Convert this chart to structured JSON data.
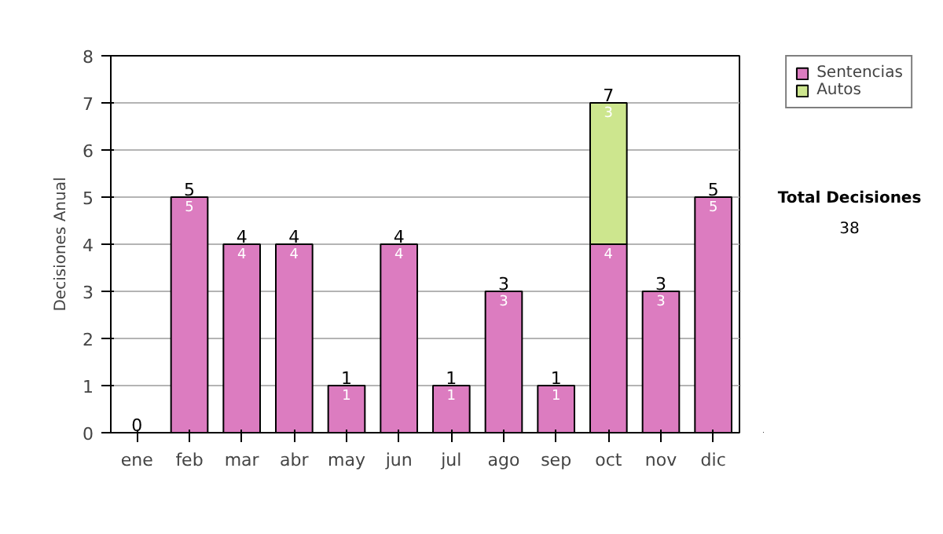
{
  "chart_data": {
    "type": "bar",
    "stacked": true,
    "ylabel": "Decisiones Anual",
    "categories": [
      "ene",
      "feb",
      "mar",
      "abr",
      "may",
      "jun",
      "jul",
      "ago",
      "sep",
      "oct",
      "nov",
      "dic"
    ],
    "series": [
      {
        "name": "Sentencias",
        "color": "#dc7cc0",
        "values": [
          0,
          5,
          4,
          4,
          1,
          4,
          1,
          3,
          1,
          4,
          3,
          5
        ],
        "value_labels": [
          null,
          "5",
          "4",
          "4",
          "1",
          "4",
          "1",
          "3",
          "1",
          "4",
          "3",
          "5"
        ]
      },
      {
        "name": "Autos",
        "color": "#cde68e",
        "values": [
          0,
          0,
          0,
          0,
          0,
          0,
          0,
          0,
          0,
          3,
          0,
          0
        ],
        "value_labels": [
          null,
          null,
          null,
          null,
          null,
          null,
          null,
          null,
          null,
          "3",
          null,
          null
        ]
      }
    ],
    "totals": [
      "0",
      "5",
      "4",
      "4",
      "1",
      "4",
      "1",
      "3",
      "1",
      "7",
      "3",
      "5"
    ],
    "ylim": [
      0,
      8
    ],
    "yticks": [
      0,
      1,
      2,
      3,
      4,
      5,
      6,
      7,
      8
    ],
    "grid": "y",
    "legend": "right",
    "annotations": [
      "Total Decisiones",
      "38"
    ]
  }
}
